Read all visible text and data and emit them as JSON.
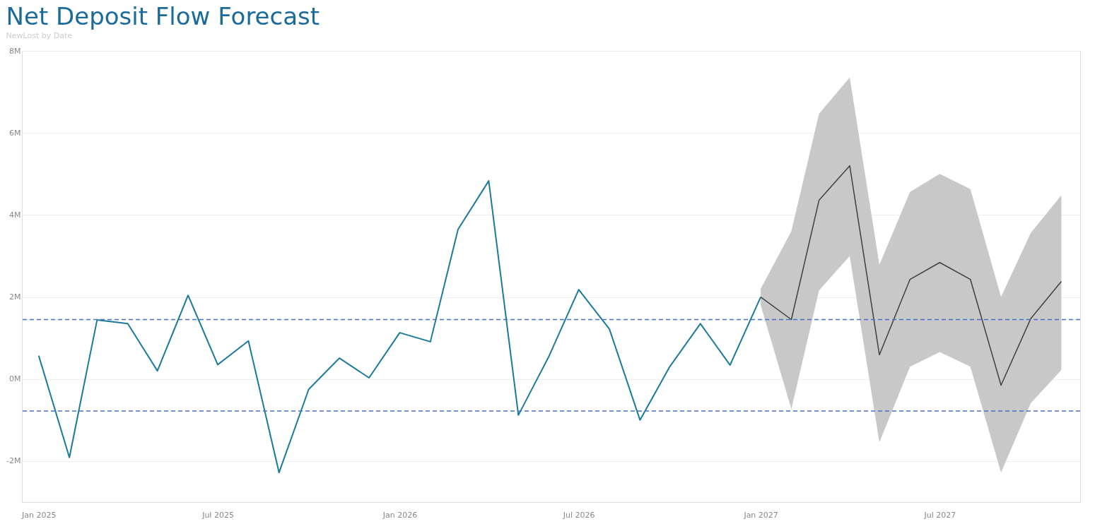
{
  "chart_data": {
    "type": "line",
    "title": "Net Deposit Flow Forecast",
    "subtitle": "NewLost by Date",
    "series": [
      {
        "color": "#1a7a9c",
        "x": [
          "2025-01",
          "2025-02",
          "2025-03",
          "2025-04",
          "2025-05",
          "2025-06",
          "2025-07",
          "2025-08",
          "2025-09",
          "2025-10",
          "2025-11",
          "2025-12",
          "2026-01",
          "2026-02",
          "2026-03",
          "2026-04",
          "2026-05",
          "2026-06",
          "2026-07",
          "2026-08",
          "2026-09",
          "2026-10",
          "2026-11",
          "2026-12",
          "2027-01"
        ],
        "values": [
          0.57,
          -1.91,
          1.44,
          1.35,
          0.2,
          2.04,
          0.35,
          0.93,
          -2.28,
          -0.25,
          0.51,
          0.03,
          1.13,
          0.91,
          3.65,
          4.83,
          -0.88,
          0.56,
          2.18,
          1.22,
          -1.0,
          0.3,
          1.35,
          0.34,
          2.0
        ]
      },
      {
        "color": "#404040",
        "x": [
          "2027-01",
          "2027-02",
          "2027-03",
          "2027-04",
          "2027-05",
          "2027-06",
          "2027-07",
          "2027-08",
          "2027-09",
          "2027-10",
          "2027-11"
        ],
        "values": [
          2.0,
          1.45,
          4.36,
          5.2,
          0.59,
          2.43,
          2.84,
          2.43,
          -0.15,
          1.47,
          2.38
        ],
        "lower": [
          1.8,
          -0.73,
          2.16,
          3.0,
          -1.54,
          0.3,
          0.66,
          0.3,
          -2.28,
          -0.59,
          0.22
        ],
        "upper": [
          2.2,
          3.6,
          6.47,
          7.35,
          2.79,
          4.56,
          5.0,
          4.63,
          2.0,
          3.56,
          4.48
        ]
      }
    ],
    "ref_lines": [
      {
        "axis": "y",
        "value": 1.45,
        "color": "#4472c4",
        "line_style": "dashed"
      },
      {
        "axis": "y",
        "value": -0.78,
        "color": "#4472c4",
        "line_style": "dashed"
      }
    ],
    "xlim": [
      "2024-12-15",
      "2027-11-20"
    ],
    "xticks": [
      {
        "value": "2025-01",
        "label": "Jan 2025"
      },
      {
        "value": "2025-07",
        "label": "Jul 2025"
      },
      {
        "value": "2026-01",
        "label": "Jan 2026"
      },
      {
        "value": "2026-07",
        "label": "Jul 2026"
      },
      {
        "value": "2027-01",
        "label": "Jan 2027"
      },
      {
        "value": "2027-07",
        "label": "Jul 2027"
      }
    ],
    "ylim": [
      -3,
      8
    ],
    "yticks": [
      {
        "value": -2,
        "label": "-2M"
      },
      {
        "value": 0,
        "label": "0M"
      },
      {
        "value": 2,
        "label": "2M"
      },
      {
        "value": 4,
        "label": "4M"
      },
      {
        "value": 6,
        "label": "6M"
      },
      {
        "value": 8,
        "label": "8M"
      }
    ],
    "grid": "y",
    "marker": "none",
    "line_style": "solid"
  }
}
